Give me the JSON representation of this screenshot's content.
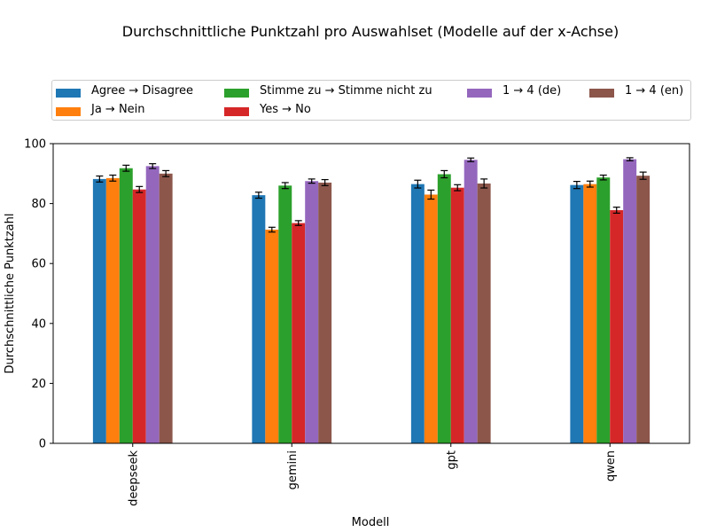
{
  "chart_data": {
    "type": "bar",
    "title": "Durchschnittliche Punktzahl pro Auswahlset (Modelle auf der x-Achse)",
    "xlabel": "Modell",
    "ylabel": "Durchschnittliche Punktzahl",
    "ylim": [
      0,
      100
    ],
    "yticks": [
      "0",
      "20",
      "40",
      "60",
      "80",
      "100"
    ],
    "categories": [
      "deepseek",
      "gemini",
      "gpt",
      "qwen"
    ],
    "series": [
      {
        "name": "Agree → Disagree",
        "color": "#1f77b4",
        "values": [
          88.2,
          82.8,
          86.5,
          86.2
        ],
        "errors": [
          1.0,
          1.0,
          1.3,
          1.2
        ]
      },
      {
        "name": "Ja → Nein",
        "color": "#ff7f0e",
        "values": [
          88.5,
          71.3,
          83.0,
          86.5
        ],
        "errors": [
          1.0,
          0.8,
          1.5,
          1.0
        ]
      },
      {
        "name": "Stimme zu → Stimme nicht zu",
        "color": "#2ca02c",
        "values": [
          91.8,
          86.0,
          89.8,
          88.7
        ],
        "errors": [
          1.0,
          1.0,
          1.2,
          0.8
        ]
      },
      {
        "name": "Yes → No",
        "color": "#d62728",
        "values": [
          84.7,
          73.5,
          85.3,
          77.8
        ],
        "errors": [
          1.0,
          0.8,
          1.0,
          1.0
        ]
      },
      {
        "name": "1 → 4 (de)",
        "color": "#9467bd",
        "values": [
          92.5,
          87.5,
          94.6,
          94.8
        ],
        "errors": [
          0.8,
          0.7,
          0.6,
          0.5
        ]
      },
      {
        "name": "1 → 4 (en)",
        "color": "#8c564b",
        "values": [
          90.0,
          87.0,
          86.7,
          89.3
        ],
        "errors": [
          1.0,
          1.0,
          1.5,
          1.2
        ]
      }
    ],
    "grid": false,
    "legend_position": "top"
  }
}
